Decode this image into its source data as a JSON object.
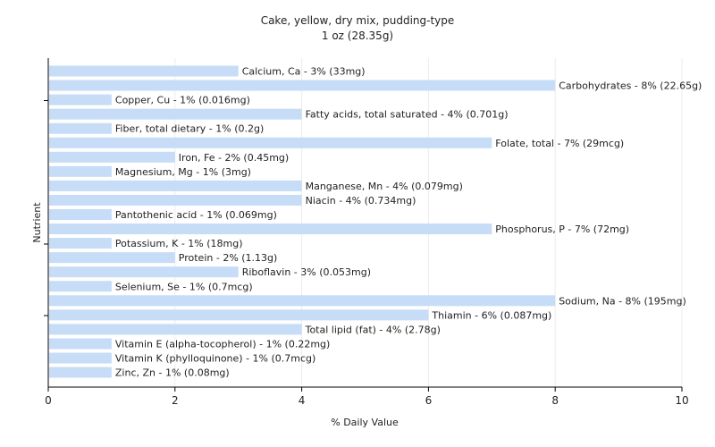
{
  "chart_data": {
    "type": "bar",
    "orientation": "horizontal",
    "title": "Cake, yellow, dry mix, pudding-type",
    "subtitle": "1 oz (28.35g)",
    "xlabel": "% Daily Value",
    "ylabel": "Nutrient",
    "xlim": [
      0,
      10
    ],
    "xticks": [
      "0",
      "2",
      "4",
      "6",
      "8",
      "10"
    ],
    "grid": true,
    "bar_color": "#c6dcf7",
    "bars": [
      {
        "name": "Calcium, Ca",
        "value": 3,
        "label": "Calcium, Ca - 3% (33mg)"
      },
      {
        "name": "Carbohydrates",
        "value": 8,
        "label": "Carbohydrates - 8% (22.65g)"
      },
      {
        "name": "Copper, Cu",
        "value": 1,
        "label": "Copper, Cu - 1% (0.016mg)"
      },
      {
        "name": "Fatty acids, total saturated",
        "value": 4,
        "label": "Fatty acids, total saturated - 4% (0.701g)"
      },
      {
        "name": "Fiber, total dietary",
        "value": 1,
        "label": "Fiber, total dietary - 1% (0.2g)"
      },
      {
        "name": "Folate, total",
        "value": 7,
        "label": "Folate, total - 7% (29mcg)"
      },
      {
        "name": "Iron, Fe",
        "value": 2,
        "label": "Iron, Fe - 2% (0.45mg)"
      },
      {
        "name": "Magnesium, Mg",
        "value": 1,
        "label": "Magnesium, Mg - 1% (3mg)"
      },
      {
        "name": "Manganese, Mn",
        "value": 4,
        "label": "Manganese, Mn - 4% (0.079mg)"
      },
      {
        "name": "Niacin",
        "value": 4,
        "label": "Niacin - 4% (0.734mg)"
      },
      {
        "name": "Pantothenic acid",
        "value": 1,
        "label": "Pantothenic acid - 1% (0.069mg)"
      },
      {
        "name": "Phosphorus, P",
        "value": 7,
        "label": "Phosphorus, P - 7% (72mg)"
      },
      {
        "name": "Potassium, K",
        "value": 1,
        "label": "Potassium, K - 1% (18mg)"
      },
      {
        "name": "Protein",
        "value": 2,
        "label": "Protein - 2% (1.13g)"
      },
      {
        "name": "Riboflavin",
        "value": 3,
        "label": "Riboflavin - 3% (0.053mg)"
      },
      {
        "name": "Selenium, Se",
        "value": 1,
        "label": "Selenium, Se - 1% (0.7mcg)"
      },
      {
        "name": "Sodium, Na",
        "value": 8,
        "label": "Sodium, Na - 8% (195mg)"
      },
      {
        "name": "Thiamin",
        "value": 6,
        "label": "Thiamin - 6% (0.087mg)"
      },
      {
        "name": "Total lipid (fat)",
        "value": 4,
        "label": "Total lipid (fat) - 4% (2.78g)"
      },
      {
        "name": "Vitamin E (alpha-tocopherol)",
        "value": 1,
        "label": "Vitamin E (alpha-tocopherol) - 1% (0.22mg)"
      },
      {
        "name": "Vitamin K (phylloquinone)",
        "value": 1,
        "label": "Vitamin K (phylloquinone) - 1% (0.7mcg)"
      },
      {
        "name": "Zinc, Zn",
        "value": 1,
        "label": "Zinc, Zn - 1% (0.08mg)"
      }
    ]
  }
}
